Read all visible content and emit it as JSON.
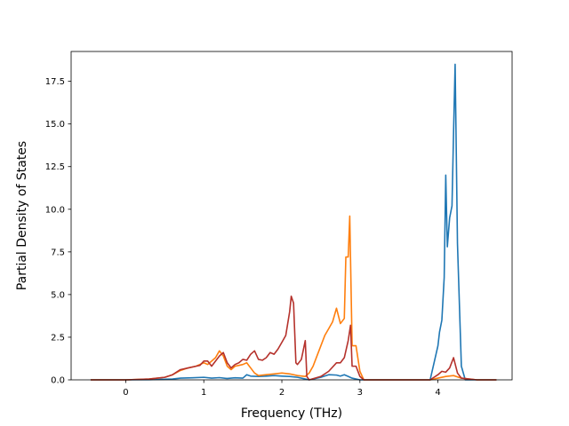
{
  "chart_data": {
    "type": "line",
    "xlabel": "Frequency (THz)",
    "ylabel": "Partial Density of States",
    "xlim": [
      -0.7,
      4.95
    ],
    "ylim": [
      0,
      19.25
    ],
    "xticks": [
      0,
      1,
      2,
      3,
      4
    ],
    "yticks": [
      0.0,
      2.5,
      5.0,
      7.5,
      10.0,
      12.5,
      15.0,
      17.5
    ],
    "x_tick_labels": [
      "0",
      "1",
      "2",
      "3",
      "4"
    ],
    "y_tick_labels": [
      "0.0",
      "2.5",
      "5.0",
      "7.5",
      "10.0",
      "12.5",
      "15.0",
      "17.5"
    ],
    "grid": false,
    "legend": "none",
    "series": [
      {
        "color": "#1f77b4",
        "x": [
          -0.45,
          0.0,
          0.3,
          0.6,
          0.7,
          0.85,
          1.0,
          1.1,
          1.2,
          1.3,
          1.4,
          1.5,
          1.55,
          1.6,
          1.7,
          1.8,
          1.9,
          2.0,
          2.1,
          2.2,
          2.3,
          2.35,
          2.4,
          2.5,
          2.6,
          2.7,
          2.75,
          2.8,
          2.85,
          2.9,
          2.95,
          3.0,
          3.5,
          3.9,
          3.95,
          4.0,
          4.02,
          4.05,
          4.08,
          4.1,
          4.12,
          4.15,
          4.18,
          4.2,
          4.22,
          4.25,
          4.3,
          4.35,
          4.5,
          4.75
        ],
        "values": [
          0.0,
          0.0,
          0.01,
          0.05,
          0.1,
          0.12,
          0.15,
          0.1,
          0.13,
          0.08,
          0.12,
          0.1,
          0.3,
          0.22,
          0.2,
          0.22,
          0.25,
          0.22,
          0.2,
          0.15,
          0.05,
          0.0,
          0.05,
          0.15,
          0.3,
          0.28,
          0.22,
          0.3,
          0.2,
          0.1,
          0.05,
          0.0,
          0.0,
          0.0,
          1.0,
          2.0,
          2.8,
          3.5,
          6.0,
          12.0,
          7.8,
          9.5,
          10.2,
          14.5,
          18.5,
          8.0,
          0.8,
          0.0,
          0.0,
          0.0
        ]
      },
      {
        "color": "#ff7f0e",
        "x": [
          -0.45,
          0.0,
          0.3,
          0.5,
          0.6,
          0.7,
          0.8,
          0.9,
          1.0,
          1.05,
          1.1,
          1.15,
          1.2,
          1.25,
          1.3,
          1.35,
          1.4,
          1.45,
          1.5,
          1.55,
          1.6,
          1.65,
          1.7,
          1.8,
          1.9,
          2.0,
          2.1,
          2.2,
          2.3,
          2.35,
          2.4,
          2.45,
          2.5,
          2.55,
          2.6,
          2.65,
          2.7,
          2.75,
          2.8,
          2.82,
          2.85,
          2.87,
          2.9,
          2.95,
          3.0,
          3.05,
          3.5,
          3.9,
          4.0,
          4.1,
          4.2,
          4.3,
          4.5,
          4.75
        ],
        "values": [
          0.0,
          0.0,
          0.05,
          0.15,
          0.3,
          0.55,
          0.7,
          0.8,
          1.0,
          0.9,
          1.1,
          1.3,
          1.7,
          1.4,
          0.8,
          0.6,
          0.8,
          0.85,
          0.9,
          1.0,
          0.7,
          0.4,
          0.25,
          0.3,
          0.35,
          0.4,
          0.35,
          0.25,
          0.2,
          0.4,
          0.8,
          1.4,
          2.0,
          2.6,
          3.0,
          3.4,
          4.2,
          3.3,
          3.6,
          7.2,
          7.2,
          9.6,
          2.0,
          2.0,
          0.5,
          0.0,
          0.0,
          0.0,
          0.1,
          0.2,
          0.25,
          0.1,
          0.0,
          0.0
        ]
      },
      {
        "color": "#b5322c",
        "x": [
          -0.45,
          0.0,
          0.3,
          0.5,
          0.6,
          0.7,
          0.8,
          0.9,
          0.95,
          1.0,
          1.05,
          1.1,
          1.15,
          1.2,
          1.25,
          1.3,
          1.35,
          1.4,
          1.45,
          1.5,
          1.55,
          1.6,
          1.65,
          1.7,
          1.75,
          1.8,
          1.85,
          1.9,
          1.95,
          2.0,
          2.05,
          2.1,
          2.12,
          2.15,
          2.18,
          2.2,
          2.25,
          2.3,
          2.32,
          2.35,
          2.5,
          2.6,
          2.7,
          2.75,
          2.8,
          2.85,
          2.88,
          2.9,
          2.95,
          3.0,
          3.05,
          3.5,
          3.9,
          4.0,
          4.05,
          4.1,
          4.15,
          4.2,
          4.25,
          4.3,
          4.5,
          4.75
        ],
        "values": [
          0.0,
          0.0,
          0.05,
          0.15,
          0.3,
          0.6,
          0.7,
          0.8,
          0.85,
          1.1,
          1.1,
          0.8,
          1.1,
          1.4,
          1.6,
          1.0,
          0.7,
          0.9,
          1.0,
          1.2,
          1.15,
          1.5,
          1.7,
          1.2,
          1.15,
          1.3,
          1.6,
          1.5,
          1.8,
          2.2,
          2.6,
          4.0,
          4.9,
          4.5,
          1.0,
          0.9,
          1.2,
          2.3,
          0.2,
          0.0,
          0.2,
          0.5,
          1.0,
          1.0,
          1.3,
          2.3,
          3.2,
          0.8,
          0.8,
          0.2,
          0.0,
          0.0,
          0.0,
          0.3,
          0.5,
          0.45,
          0.7,
          1.3,
          0.4,
          0.1,
          0.0,
          0.0
        ]
      }
    ]
  }
}
